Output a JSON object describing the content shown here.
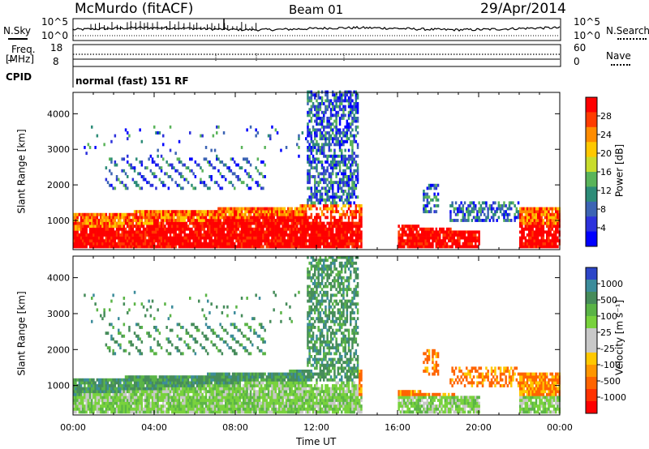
{
  "header": {
    "station": "McMurdo (fitACF)",
    "beam": "Beam 01",
    "date": "29/Apr/2014"
  },
  "summary_panel": {
    "nsky_label": "N.Sky",
    "nsky_ticks": [
      "10^5",
      "10^0"
    ],
    "nsearch_label": "N.Search",
    "nsearch_ticks": [
      "10^5",
      "10^0"
    ],
    "freq_label_1": "Freq.",
    "freq_label_2": "[MHz]",
    "freq_ticks": [
      "18",
      "8"
    ],
    "nave_label": "Nave",
    "nave_ticks": [
      "60",
      "0"
    ],
    "cpid_label": "CPID",
    "cpid_value": "normal (fast) 151 RF"
  },
  "chart_data": [
    {
      "type": "heatmap",
      "quantity": "Power",
      "ylabel": "Slant Range [km]",
      "ylim": [
        180,
        4600
      ],
      "y_ticks": [
        "1000",
        "2000",
        "3000",
        "4000"
      ],
      "x_ticks": [
        "00:00",
        "04:00",
        "08:00",
        "12:00",
        "16:00",
        "20:00",
        "00:00"
      ],
      "colorbar": {
        "label": "Power [dB]",
        "ticks": [
          "28",
          "24",
          "20",
          "16",
          "12",
          "8",
          "4"
        ],
        "colors": [
          "#ff0000",
          "#ff3c00",
          "#ff8c00",
          "#ffc800",
          "#c8dc2d",
          "#5ab45a",
          "#2d8c78",
          "#3c64b4",
          "#2d32dc",
          "#0000ff"
        ]
      }
    },
    {
      "type": "heatmap",
      "quantity": "Velocity",
      "ylabel": "Slant Range [km]",
      "ylim": [
        180,
        4600
      ],
      "y_ticks": [
        "1000",
        "2000",
        "3000",
        "4000"
      ],
      "x_ticks": [
        "00:00",
        "04:00",
        "08:00",
        "12:00",
        "16:00",
        "20:00",
        "00:00"
      ],
      "xlabel": "Time UT",
      "colorbar": {
        "label": "Velocity [m s⁻¹]",
        "ticks": [
          "1000",
          "500",
          "100",
          "25",
          "-25",
          "-100",
          "-500",
          "-1000"
        ],
        "colors": [
          "#2d46c8",
          "#3c8c9b",
          "#468c5a",
          "#5ab446",
          "#78d23c",
          "#c8c8c8",
          "#c8c8c8",
          "#ffc800",
          "#ff9600",
          "#ff6400",
          "#ff3200",
          "#ff0000"
        ]
      }
    }
  ]
}
